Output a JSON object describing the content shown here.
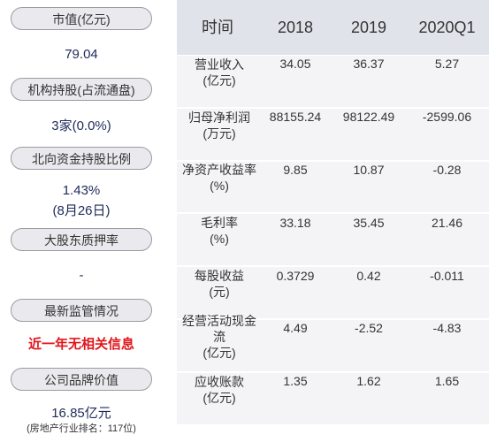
{
  "left": {
    "items": [
      {
        "label": "市值(亿元)",
        "value": [
          "79.04"
        ]
      },
      {
        "label": "机构持股(占流通盘)",
        "value": [
          "3家(0.0%)"
        ]
      },
      {
        "label": "北向资金持股比例",
        "value": [
          "1.43%",
          "(8月26日)"
        ]
      },
      {
        "label": "大股东质押率",
        "value": [
          "-"
        ]
      },
      {
        "label": "最新监管情况",
        "value": [
          "近一年无相关信息"
        ]
      },
      {
        "label": "公司品牌价值",
        "value": [
          "16.85亿元",
          "(房地产行业排名：117位)"
        ]
      }
    ]
  },
  "table": {
    "header": [
      "时间",
      "2018",
      "2019",
      "2020Q1"
    ],
    "rows": [
      {
        "label": [
          "营业收入",
          "(亿元)"
        ],
        "values": [
          "34.05",
          "36.37",
          "5.27"
        ]
      },
      {
        "label": [
          "归母净利润",
          "(万元)"
        ],
        "values": [
          "88155.24",
          "98122.49",
          "-2599.06"
        ]
      },
      {
        "label": [
          "净资产收益率",
          "(%)"
        ],
        "values": [
          "9.85",
          "10.87",
          "-0.28"
        ]
      },
      {
        "label": [
          "毛利率",
          "(%)"
        ],
        "values": [
          "33.18",
          "35.45",
          "21.46"
        ]
      },
      {
        "label": [
          "每股收益",
          "(元)"
        ],
        "values": [
          "0.3729",
          "0.42",
          "-0.011"
        ]
      },
      {
        "label": [
          "经营活动现金流",
          "(亿元)"
        ],
        "values": [
          "4.49",
          "-2.52",
          "-4.83"
        ]
      },
      {
        "label": [
          "应收账款",
          "(亿元)"
        ],
        "values": [
          "1.35",
          "1.62",
          "1.65"
        ]
      }
    ]
  }
}
